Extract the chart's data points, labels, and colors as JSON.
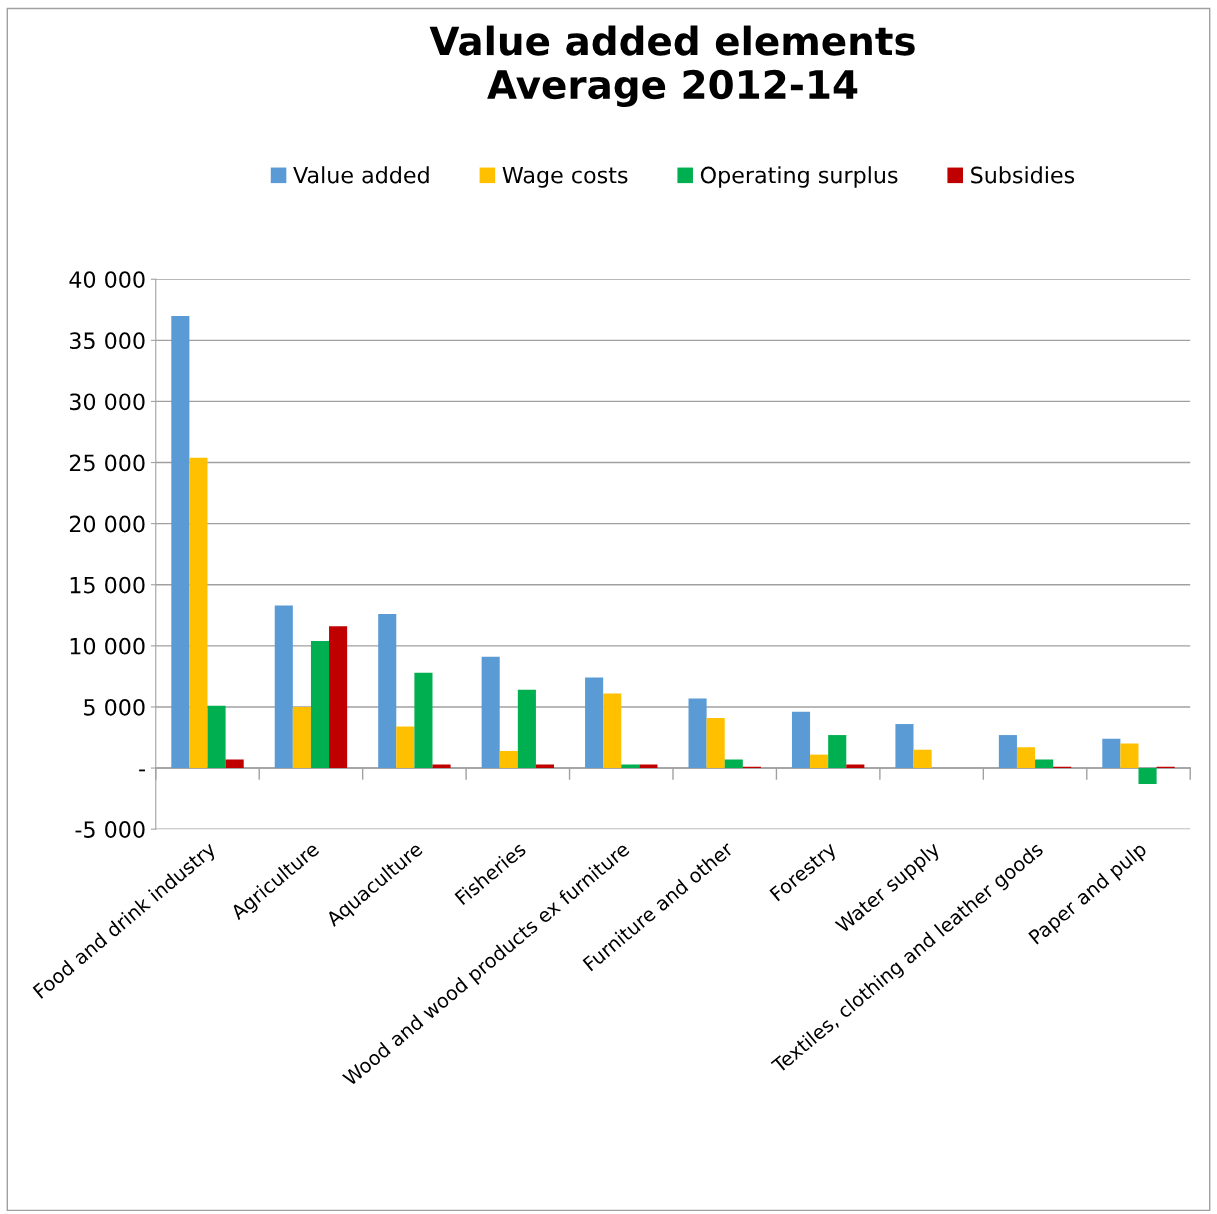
{
  "chart_data": {
    "type": "bar",
    "title": "Value added elements\nAverage 2012-14",
    "categories": [
      "Food and drink industry",
      "Agriculture",
      "Aquaculture",
      "Fisheries",
      "Wood and wood products ex furniture",
      "Furniture and other",
      "Forestry",
      "Water supply",
      "Textiles, clothing and leather goods",
      "Paper and pulp"
    ],
    "series": [
      {
        "name": "Value added",
        "color": "#5b9bd5",
        "values": [
          37000,
          13300,
          12600,
          9100,
          7400,
          5700,
          4600,
          3600,
          2700,
          2400
        ]
      },
      {
        "name": "Wage costs",
        "color": "#ffc000",
        "values": [
          25400,
          5000,
          3400,
          1400,
          6100,
          4100,
          1100,
          1500,
          1700,
          2000
        ]
      },
      {
        "name": "Operating surplus",
        "color": "#00b050",
        "values": [
          5100,
          10400,
          7800,
          6400,
          300,
          700,
          2700,
          0,
          700,
          -1300
        ]
      },
      {
        "name": "Subsidies",
        "color": "#c00000",
        "values": [
          700,
          11600,
          300,
          300,
          300,
          100,
          300,
          0,
          100,
          100
        ]
      }
    ],
    "ylim": [
      -5000,
      40000
    ],
    "yticks": [
      {
        "value": -5000,
        "label": "-5 000"
      },
      {
        "value": 0,
        "label": "-"
      },
      {
        "value": 5000,
        "label": "5 000"
      },
      {
        "value": 10000,
        "label": "10 000"
      },
      {
        "value": 15000,
        "label": "15 000"
      },
      {
        "value": 20000,
        "label": "20 000"
      },
      {
        "value": 25000,
        "label": "25 000"
      },
      {
        "value": 30000,
        "label": "30 000"
      },
      {
        "value": 35000,
        "label": "35 000"
      },
      {
        "value": 40000,
        "label": "40 000"
      }
    ],
    "grid": "y",
    "legend": "top"
  }
}
